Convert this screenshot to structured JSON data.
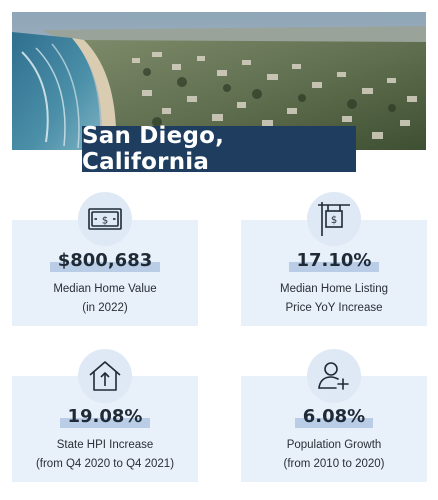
{
  "title": "San Diego, California",
  "colors": {
    "banner": "#1e3d5f",
    "card_bg": "#e8f0fa",
    "icon_circle": "#dfe9f5",
    "highlight": "#b9cde6",
    "icon_stroke": "#1f2a37"
  },
  "hero": {
    "icon": "coastline-photo"
  },
  "stats": [
    {
      "icon": "dollar-bill-icon",
      "value": "$800,683",
      "label_line1": "Median Home Value",
      "label_line2": "(in 2022)"
    },
    {
      "icon": "hanging-price-sign-icon",
      "value": "17.10%",
      "label_line1": "Median Home Listing",
      "label_line2": "Price YoY Increase"
    },
    {
      "icon": "house-arrow-up-icon",
      "value": "19.08%",
      "label_line1": "State HPI Increase",
      "label_line2": "(from Q4 2020 to Q4 2021)"
    },
    {
      "icon": "user-plus-icon",
      "value": "6.08%",
      "label_line1": "Population Growth",
      "label_line2": "(from 2010 to 2020)"
    }
  ]
}
